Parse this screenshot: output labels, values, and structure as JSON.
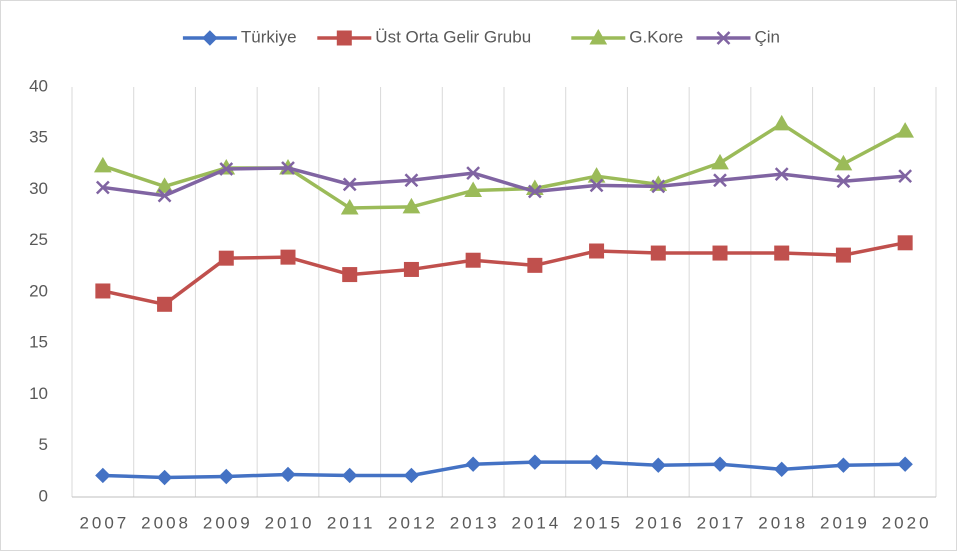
{
  "chart_data": {
    "type": "line",
    "categories": [
      "2007",
      "2008",
      "2009",
      "2010",
      "2011",
      "2012",
      "2013",
      "2014",
      "2015",
      "2016",
      "2017",
      "2018",
      "2019",
      "2020"
    ],
    "series": [
      {
        "name": "Türkiye",
        "color": "#4472c4",
        "marker": "diamond",
        "values": [
          2.1,
          1.9,
          2.0,
          2.2,
          2.1,
          2.1,
          3.2,
          3.4,
          3.4,
          3.1,
          3.2,
          2.7,
          3.1,
          3.2
        ]
      },
      {
        "name": "Üst Orta Gelir Grubu",
        "color": "#c0504d",
        "marker": "square",
        "values": [
          20.1,
          18.8,
          23.3,
          23.4,
          21.7,
          22.2,
          23.1,
          22.6,
          24.0,
          23.8,
          23.8,
          23.8,
          23.6,
          24.8
        ]
      },
      {
        "name": "G.Kore",
        "color": "#9bbb59",
        "marker": "triangle",
        "values": [
          32.3,
          30.3,
          32.1,
          32.1,
          28.2,
          28.3,
          29.9,
          30.1,
          31.3,
          30.5,
          32.6,
          36.4,
          32.5,
          35.7
        ]
      },
      {
        "name": "Çin",
        "color": "#8064a2",
        "marker": "x",
        "values": [
          30.2,
          29.4,
          32.0,
          32.1,
          30.5,
          30.9,
          31.6,
          29.8,
          30.4,
          30.3,
          30.9,
          31.5,
          30.8,
          31.3
        ]
      }
    ],
    "ylim": [
      0,
      40
    ],
    "yticks": [
      0,
      5,
      10,
      15,
      20,
      25,
      30,
      35,
      40
    ],
    "legend": "top"
  }
}
